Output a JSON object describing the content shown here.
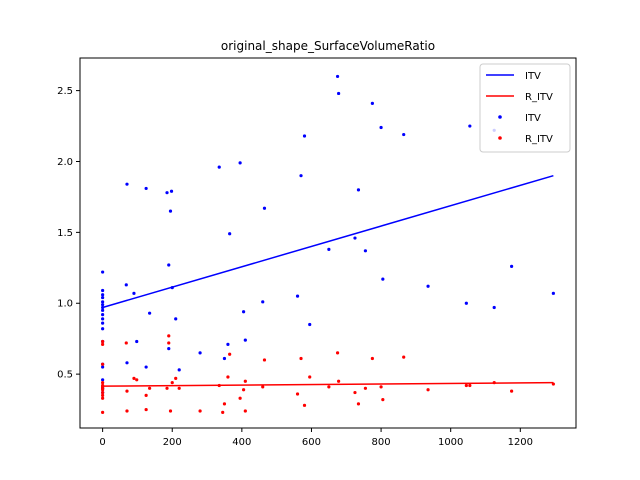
{
  "chart_data": {
    "type": "scatter",
    "title": "original_shape_SurfaceVolumeRatio",
    "xlabel": "",
    "ylabel": "",
    "xlim": [
      -65,
      1360
    ],
    "ylim": [
      0.12,
      2.73
    ],
    "xticks": [
      0,
      200,
      400,
      600,
      800,
      1000,
      1200
    ],
    "yticks": [
      0.5,
      1.0,
      1.5,
      2.0,
      2.5
    ],
    "grid": false,
    "legend_position": "top-right",
    "series": [
      {
        "name": "ITV",
        "kind": "line",
        "color": "#0000ff",
        "x": [
          0,
          1295
        ],
        "y": [
          0.97,
          1.9
        ]
      },
      {
        "name": "R_ITV",
        "kind": "line",
        "color": "#ff0000",
        "x": [
          0,
          1295
        ],
        "y": [
          0.415,
          0.44
        ]
      },
      {
        "name": "ITV",
        "kind": "scatter",
        "color": "#0000ff",
        "points": [
          [
            0,
            1.22
          ],
          [
            0,
            1.09
          ],
          [
            0,
            1.06
          ],
          [
            0,
            1.04
          ],
          [
            0,
            1.01
          ],
          [
            0,
            0.99
          ],
          [
            0,
            0.97
          ],
          [
            0,
            0.95
          ],
          [
            0,
            0.92
          ],
          [
            0,
            0.89
          ],
          [
            0,
            0.86
          ],
          [
            0,
            0.82
          ],
          [
            0,
            0.73
          ],
          [
            0,
            0.57
          ],
          [
            0,
            0.55
          ],
          [
            0,
            0.46
          ],
          [
            0,
            0.4
          ],
          [
            0,
            0.37
          ],
          [
            68,
            1.13
          ],
          [
            70,
            0.58
          ],
          [
            70,
            1.84
          ],
          [
            90,
            1.07
          ],
          [
            98,
            0.73
          ],
          [
            125,
            0.55
          ],
          [
            125,
            1.81
          ],
          [
            135,
            0.93
          ],
          [
            185,
            1.78
          ],
          [
            190,
            1.27
          ],
          [
            190,
            0.68
          ],
          [
            195,
            1.65
          ],
          [
            198,
            1.79
          ],
          [
            200,
            1.11
          ],
          [
            210,
            0.89
          ],
          [
            220,
            0.53
          ],
          [
            280,
            0.65
          ],
          [
            335,
            1.96
          ],
          [
            350,
            0.61
          ],
          [
            360,
            0.71
          ],
          [
            365,
            1.49
          ],
          [
            395,
            1.99
          ],
          [
            405,
            0.94
          ],
          [
            410,
            0.74
          ],
          [
            460,
            1.01
          ],
          [
            465,
            1.67
          ],
          [
            560,
            1.05
          ],
          [
            570,
            1.9
          ],
          [
            580,
            2.18
          ],
          [
            595,
            0.85
          ],
          [
            650,
            1.38
          ],
          [
            675,
            2.6
          ],
          [
            678,
            2.48
          ],
          [
            725,
            1.46
          ],
          [
            735,
            1.8
          ],
          [
            755,
            1.37
          ],
          [
            775,
            2.41
          ],
          [
            800,
            2.24
          ],
          [
            805,
            1.17
          ],
          [
            865,
            2.19
          ],
          [
            935,
            1.12
          ],
          [
            1045,
            1.0
          ],
          [
            1055,
            2.25
          ],
          [
            1125,
            0.97
          ],
          [
            1125,
            2.22
          ],
          [
            1175,
            1.26
          ],
          [
            1295,
            1.07
          ]
        ]
      },
      {
        "name": "R_ITV",
        "kind": "scatter",
        "color": "#ff0000",
        "points": [
          [
            0,
            0.73
          ],
          [
            0,
            0.71
          ],
          [
            0,
            0.57
          ],
          [
            0,
            0.44
          ],
          [
            0,
            0.42
          ],
          [
            0,
            0.41
          ],
          [
            0,
            0.4
          ],
          [
            0,
            0.39
          ],
          [
            0,
            0.37
          ],
          [
            0,
            0.35
          ],
          [
            0,
            0.33
          ],
          [
            0,
            0.23
          ],
          [
            68,
            0.72
          ],
          [
            70,
            0.38
          ],
          [
            70,
            0.24
          ],
          [
            90,
            0.47
          ],
          [
            98,
            0.46
          ],
          [
            125,
            0.35
          ],
          [
            125,
            0.25
          ],
          [
            135,
            0.4
          ],
          [
            185,
            0.4
          ],
          [
            190,
            0.77
          ],
          [
            190,
            0.72
          ],
          [
            195,
            0.24
          ],
          [
            200,
            0.44
          ],
          [
            210,
            0.47
          ],
          [
            220,
            0.4
          ],
          [
            280,
            0.24
          ],
          [
            335,
            0.42
          ],
          [
            345,
            0.23
          ],
          [
            350,
            0.29
          ],
          [
            360,
            0.48
          ],
          [
            365,
            0.64
          ],
          [
            395,
            0.33
          ],
          [
            405,
            0.39
          ],
          [
            410,
            0.45
          ],
          [
            410,
            0.24
          ],
          [
            460,
            0.41
          ],
          [
            465,
            0.6
          ],
          [
            560,
            0.36
          ],
          [
            570,
            0.61
          ],
          [
            580,
            0.28
          ],
          [
            595,
            0.48
          ],
          [
            650,
            0.41
          ],
          [
            675,
            0.65
          ],
          [
            678,
            0.45
          ],
          [
            725,
            0.37
          ],
          [
            735,
            0.29
          ],
          [
            755,
            0.4
          ],
          [
            775,
            0.61
          ],
          [
            800,
            0.41
          ],
          [
            805,
            0.32
          ],
          [
            865,
            0.62
          ],
          [
            935,
            0.39
          ],
          [
            1045,
            0.42
          ],
          [
            1055,
            0.42
          ],
          [
            1125,
            0.44
          ],
          [
            1175,
            0.38
          ],
          [
            1295,
            0.43
          ]
        ]
      }
    ]
  }
}
